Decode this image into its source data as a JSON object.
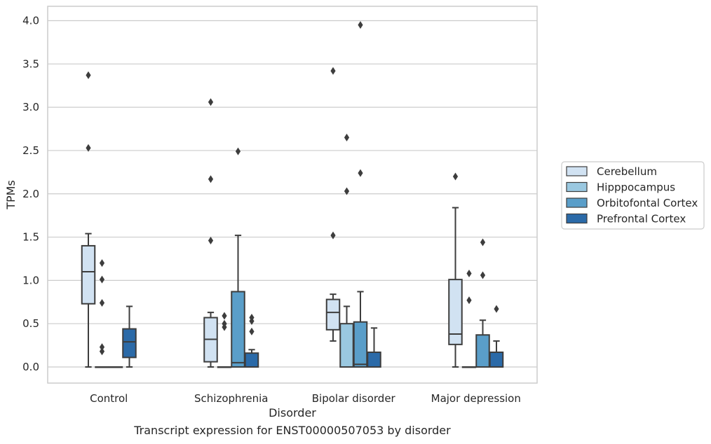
{
  "chart_data": {
    "type": "boxplot",
    "title": "",
    "caption": "Transcript expression for ENST00000507053 by disorder",
    "xlabel": "Disorder",
    "ylabel": "TPMs",
    "ylim": [
      -0.19,
      4.17
    ],
    "yticks": [
      0.0,
      0.5,
      1.0,
      1.5,
      2.0,
      2.5,
      3.0,
      3.5,
      4.0
    ],
    "ytick_labels": [
      "0.0",
      "0.5",
      "1.0",
      "1.5",
      "2.0",
      "2.5",
      "3.0",
      "3.5",
      "4.0"
    ],
    "grid": "horizontal",
    "legend_position": "right",
    "categories": [
      "Control",
      "Schizophrenia",
      "Bipolar disorder",
      "Major depression"
    ],
    "series": [
      {
        "name": "Cerebellum",
        "color": "#d1e2f2",
        "boxes": [
          {
            "whislo": 0.0,
            "q1": 0.73,
            "med": 1.1,
            "q3": 1.4,
            "whishi": 1.54,
            "fliers": [
              2.53,
              3.37
            ]
          },
          {
            "whislo": 0.0,
            "q1": 0.06,
            "med": 0.32,
            "q3": 0.57,
            "whishi": 0.63,
            "fliers": [
              1.46,
              2.17,
              3.06
            ]
          },
          {
            "whislo": 0.3,
            "q1": 0.43,
            "med": 0.63,
            "q3": 0.78,
            "whishi": 0.84,
            "fliers": [
              1.52,
              3.42
            ]
          },
          {
            "whislo": 0.0,
            "q1": 0.26,
            "med": 0.38,
            "q3": 1.01,
            "whishi": 1.84,
            "fliers": [
              2.2
            ]
          }
        ]
      },
      {
        "name": "Hipppocampus",
        "color": "#9ac8e0",
        "boxes": [
          {
            "whislo": 0.0,
            "q1": 0.0,
            "med": 0.0,
            "q3": 0.0,
            "whishi": 0.0,
            "fliers": [
              0.18,
              0.23,
              0.74,
              1.01,
              1.2
            ]
          },
          {
            "whislo": 0.0,
            "q1": 0.0,
            "med": 0.0,
            "q3": 0.0,
            "whishi": 0.0,
            "fliers": [
              0.46,
              0.5,
              0.59
            ]
          },
          {
            "whislo": 0.0,
            "q1": 0.0,
            "med": 0.0,
            "q3": 0.5,
            "whishi": 0.7,
            "fliers": [
              2.03,
              2.65
            ]
          },
          {
            "whislo": 0.0,
            "q1": 0.0,
            "med": 0.0,
            "q3": 0.0,
            "whishi": 0.0,
            "fliers": [
              0.77,
              1.08
            ]
          }
        ]
      },
      {
        "name": "Orbitofontal Cortex",
        "color": "#5a9ec9",
        "boxes": [
          {
            "whislo": 0.0,
            "q1": 0.0,
            "med": 0.0,
            "q3": 0.0,
            "whishi": 0.0,
            "fliers": []
          },
          {
            "whislo": 0.0,
            "q1": 0.0,
            "med": 0.05,
            "q3": 0.87,
            "whishi": 1.52,
            "fliers": [
              2.49
            ]
          },
          {
            "whislo": 0.0,
            "q1": 0.0,
            "med": 0.03,
            "q3": 0.52,
            "whishi": 0.87,
            "fliers": [
              2.24,
              3.95
            ]
          },
          {
            "whislo": 0.0,
            "q1": 0.0,
            "med": 0.0,
            "q3": 0.37,
            "whishi": 0.54,
            "fliers": [
              1.06,
              1.44
            ]
          }
        ]
      },
      {
        "name": "Prefrontal Cortex",
        "color": "#2b6aa8",
        "boxes": [
          {
            "whislo": 0.0,
            "q1": 0.11,
            "med": 0.29,
            "q3": 0.44,
            "whishi": 0.7,
            "fliers": []
          },
          {
            "whislo": 0.0,
            "q1": 0.0,
            "med": 0.0,
            "q3": 0.16,
            "whishi": 0.2,
            "fliers": [
              0.41,
              0.53,
              0.57
            ]
          },
          {
            "whislo": 0.0,
            "q1": 0.0,
            "med": 0.0,
            "q3": 0.17,
            "whishi": 0.45,
            "fliers": []
          },
          {
            "whislo": 0.0,
            "q1": 0.0,
            "med": 0.0,
            "q3": 0.17,
            "whishi": 0.3,
            "fliers": [
              0.67
            ]
          }
        ]
      }
    ]
  }
}
